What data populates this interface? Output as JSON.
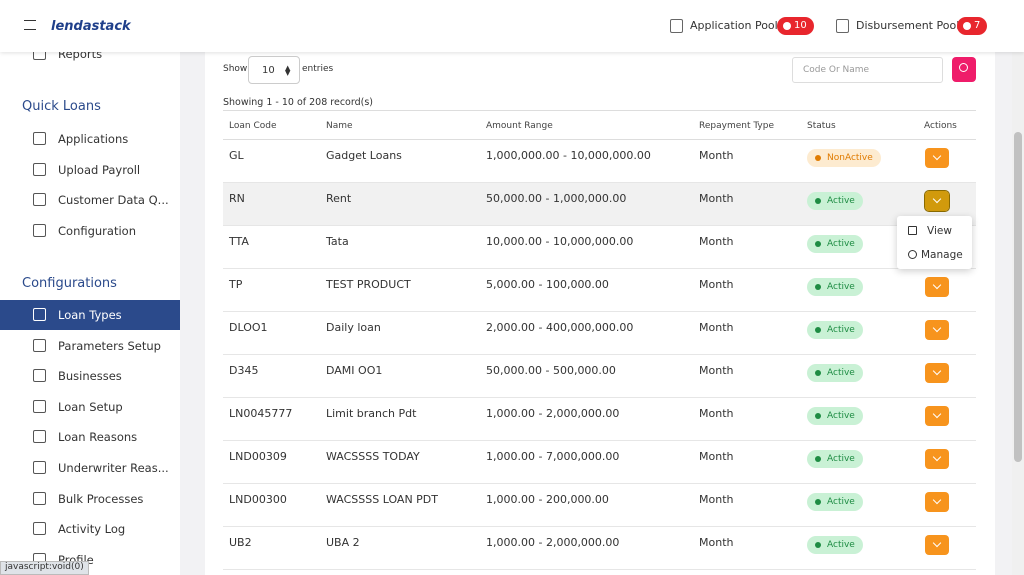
{
  "header": {
    "logo": "lendastack",
    "pools": [
      {
        "label": "Application Pool",
        "count": 10
      },
      {
        "label": "Disbursement Pool",
        "count": 7
      }
    ]
  },
  "sidebar": {
    "top_items": [
      "Reports"
    ],
    "sections": [
      {
        "title": "Quick Loans",
        "items": [
          "Applications",
          "Upload Payroll",
          "Customer Data Q...",
          "Configuration"
        ]
      },
      {
        "title": "Configurations",
        "active": 0,
        "items": [
          "Loan Types",
          "Parameters Setup",
          "Businesses",
          "Loan Setup",
          "Loan Reasons",
          "Underwriter Reas...",
          "Bulk Processes",
          "Activity Log",
          "Profile"
        ]
      }
    ]
  },
  "controls": {
    "show_label": "Show",
    "page_size": 10,
    "entries_label": "entries",
    "search_placeholder": "Code Or Name"
  },
  "table": {
    "summary": "Showing 1 - 10 of 208 record(s)",
    "columns": [
      "Loan Code",
      "Name",
      "Amount Range",
      "Repayment Type",
      "Status",
      "Actions"
    ],
    "rows": [
      [
        "GL",
        "Gadget Loans",
        "1,000,000.00 - 10,000,000.00",
        "Month",
        "NonActive"
      ],
      [
        "RN",
        "Rent",
        "50,000.00 - 1,000,000.00",
        "Month",
        "Active"
      ],
      [
        "TTA",
        "Tata",
        "10,000.00 - 10,000,000.00",
        "Month",
        "Active"
      ],
      [
        "TP",
        "TEST PRODUCT",
        "5,000.00 - 100,000.00",
        "Month",
        "Active"
      ],
      [
        "DLOO1",
        "Daily loan",
        "2,000.00 - 400,000,000.00",
        "Month",
        "Active"
      ],
      [
        "D345",
        "DAMI OO1",
        "50,000.00 - 500,000.00",
        "Month",
        "Active"
      ],
      [
        "LN0045777",
        "Limit branch Pdt",
        "1,000.00 - 2,000,000.00",
        "Month",
        "Active"
      ],
      [
        "LND00309",
        "WACSSSS TODAY",
        "1,000.00 - 7,000,000.00",
        "Month",
        "Active"
      ],
      [
        "LND00300",
        "WACSSSS LOAN PDT",
        "1,000.00 - 200,000.00",
        "Month",
        "Active"
      ],
      [
        "UB2",
        "UBA 2",
        "1,000.00 - 2,000,000.00",
        "Month",
        "Active"
      ]
    ],
    "open_row": 1
  },
  "menu": {
    "items": [
      "View",
      "Manage"
    ]
  },
  "status_bar": "javascript:void(0)"
}
